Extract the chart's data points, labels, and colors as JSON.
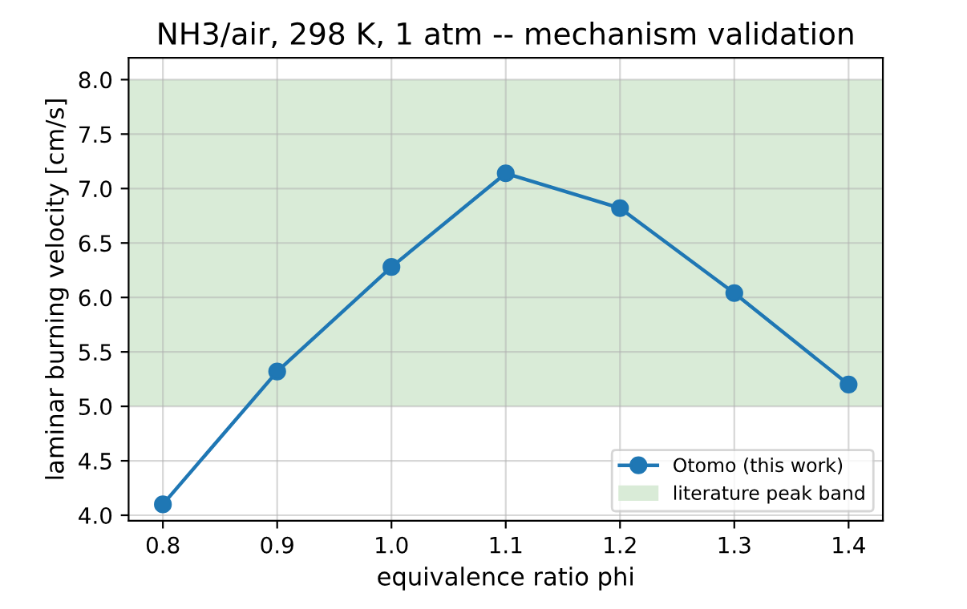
{
  "chart_data": {
    "type": "line",
    "title": "NH3/air, 298 K, 1 atm -- mechanism validation",
    "xlabel": "equivalence ratio phi",
    "ylabel": "laminar burning velocity [cm/s]",
    "x": [
      0.8,
      0.9,
      1.0,
      1.1,
      1.2,
      1.3,
      1.4
    ],
    "series": [
      {
        "name": "Otomo (this work)",
        "color": "#1f77b4",
        "values": [
          4.1,
          5.32,
          6.28,
          7.14,
          6.82,
          6.04,
          5.2
        ]
      }
    ],
    "bands": [
      {
        "axis": "y",
        "from": 5.0,
        "to": 8.0,
        "label": "literature peak band",
        "color": "#d9ebd7"
      }
    ],
    "xlim": [
      0.77,
      1.43
    ],
    "ylim": [
      3.95,
      8.2
    ],
    "xticks": [
      0.8,
      0.9,
      {
        "value": 1,
        "label": "1.0"
      },
      1.1,
      1.2,
      1.3,
      1.4
    ],
    "yticks": [
      {
        "value": 4,
        "label": "4.0"
      },
      4.5,
      {
        "value": 5,
        "label": "5.0"
      },
      5.5,
      {
        "value": 6,
        "label": "6.0"
      },
      6.5,
      {
        "value": 7,
        "label": "7.0"
      },
      7.5,
      {
        "value": 8,
        "label": "8.0"
      }
    ],
    "grid": true,
    "legend": "bottom right",
    "marker": "circle",
    "line_style": "solid"
  }
}
